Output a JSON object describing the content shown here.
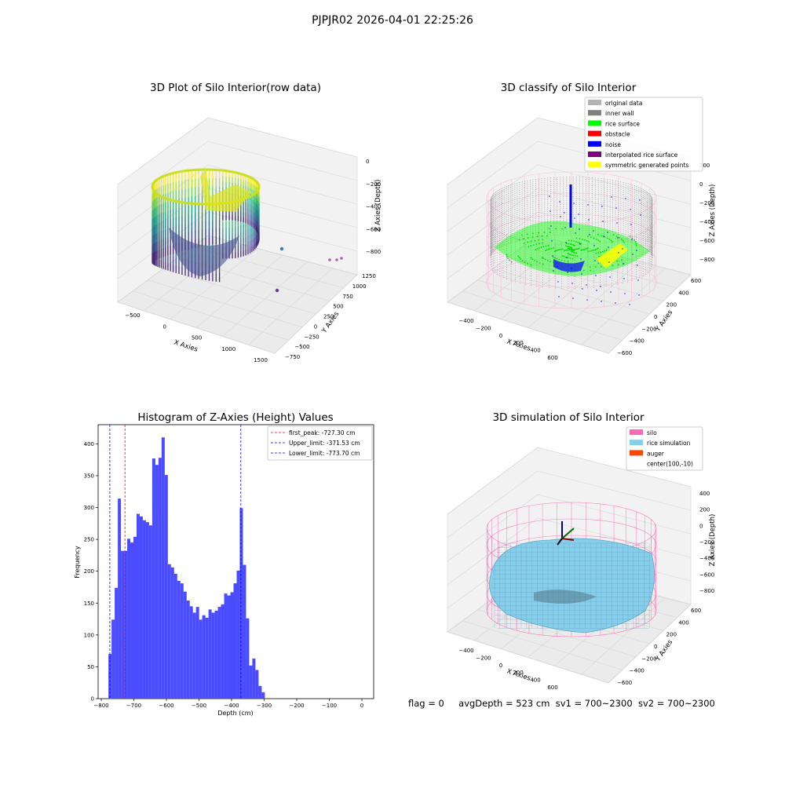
{
  "suptitle": "PJPJR02 2026-04-01 22:25:26",
  "footer": {
    "flag": "flag = 0",
    "avg_depth": "avgDepth = 523 cm",
    "sv1": "sv1 = 700~2300",
    "sv2": "sv2 = 700~2300"
  },
  "colors": {
    "hist_bar": "#4c4cff",
    "first_peak": "#ff0000",
    "limits": "#0000ff",
    "silo_wire": "#ff69b4",
    "rice_surface": "#87ceeb",
    "original": "#b3b3b3",
    "inner_wall": "#808080",
    "rice_green": "#00ff00",
    "noise": "#0000ff",
    "obstacle": "#ff0000",
    "interp": "#800080",
    "symmetric": "#ffff00",
    "auger": "#ff4500"
  },
  "panels": {
    "raw": {
      "title": "3D Plot of Silo Interior(row data)",
      "xlabel": "X Axies",
      "ylabel": "Y Axies",
      "zlabel": "Z Axies (Depth)",
      "xticks": [
        "-500",
        "0",
        "500",
        "1000",
        "1500"
      ],
      "yticks": [
        "-750",
        "-500",
        "-250",
        "0",
        "250",
        "500",
        "750",
        "1000",
        "1250"
      ],
      "zticks": [
        "0",
        "-200",
        "-400",
        "-600",
        "-800"
      ]
    },
    "classify": {
      "title": "3D classify of Silo Interior",
      "xlabel": "X Axies",
      "ylabel": "Y Axies",
      "zlabel": "Z Axies (Depth)",
      "xticks": [
        "-400",
        "-200",
        "0",
        "200",
        "400",
        "600"
      ],
      "yticks": [
        "-600",
        "-400",
        "-200",
        "0",
        "200",
        "400",
        "600"
      ],
      "zticks": [
        "200",
        "0",
        "-200",
        "-400",
        "-600",
        "-800"
      ],
      "legend": [
        {
          "label": "original data",
          "color": "#b3b3b3"
        },
        {
          "label": "inner wall",
          "color": "#808080"
        },
        {
          "label": "rice surface",
          "color": "#00ff00"
        },
        {
          "label": "obstacle",
          "color": "#ff0000"
        },
        {
          "label": "noise",
          "color": "#0000ff"
        },
        {
          "label": "interpolated rice surface",
          "color": "#800080"
        },
        {
          "label": "symmetric generated points",
          "color": "#ffff00"
        }
      ]
    },
    "sim": {
      "title": "3D simulation of Silo Interior",
      "xlabel": "X Axies",
      "ylabel": "Y Axies",
      "zlabel": "Z Axies (Depth)",
      "xticks": [
        "-400",
        "-200",
        "0",
        "200",
        "400",
        "600"
      ],
      "yticks": [
        "-600",
        "-400",
        "-200",
        "0",
        "200",
        "400",
        "600"
      ],
      "zticks": [
        "400",
        "200",
        "0",
        "-200",
        "-400",
        "-600",
        "-800"
      ],
      "legend": [
        {
          "label": "silo",
          "color": "#ff69b4"
        },
        {
          "label": "rice simulation",
          "color": "#87ceeb"
        },
        {
          "label": "auger",
          "color": "#ff4500"
        },
        {
          "label": "center(100,-10)",
          "color": ""
        }
      ]
    }
  },
  "chart_data": {
    "type": "bar",
    "title": "Histogram of Z-Axies (Height) Values",
    "xlabel": "Depth (cm)",
    "ylabel": "Frequency",
    "xlim": [
      -800,
      0
    ],
    "ylim": [
      0,
      430
    ],
    "xticks": [
      -800,
      -700,
      -600,
      -500,
      -400,
      -300,
      -200,
      -100,
      0
    ],
    "yticks": [
      0,
      50,
      100,
      150,
      200,
      250,
      300,
      350,
      400
    ],
    "bin_start": -778,
    "bin_width": 9.6,
    "values": [
      70,
      124,
      174,
      314,
      232,
      232,
      251,
      245,
      254,
      290,
      286,
      280,
      277,
      272,
      377,
      367,
      378,
      410,
      351,
      211,
      206,
      196,
      185,
      181,
      168,
      154,
      145,
      135,
      144,
      124,
      131,
      127,
      140,
      135,
      138,
      144,
      148,
      165,
      162,
      167,
      181,
      201,
      299,
      210,
      126,
      52,
      63,
      45,
      20,
      10
    ],
    "vlines": [
      {
        "label": "first_peak: -727.30 cm",
        "x": -727.3,
        "color": "#ff0000"
      },
      {
        "label": "Upper_limit: -371.53 cm",
        "x": -371.53,
        "color": "#0000ff"
      },
      {
        "label": "Lower_limit: -773.70 cm",
        "x": -773.7,
        "color": "#0000ff"
      }
    ]
  }
}
